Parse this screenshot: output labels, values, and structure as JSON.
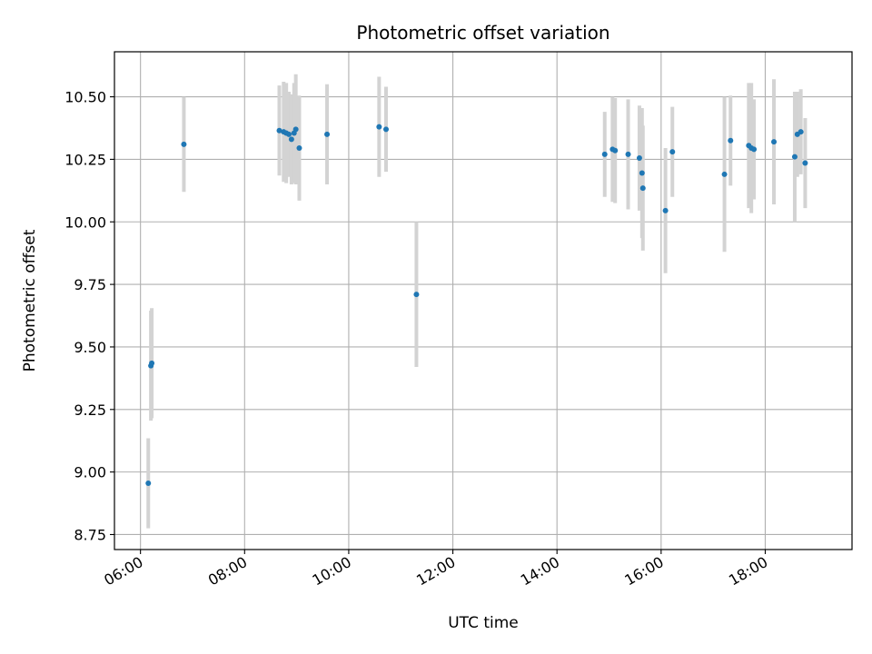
{
  "chart_data": {
    "type": "scatter",
    "title": "Photometric offset variation",
    "xlabel": "UTC time",
    "ylabel": "Photometric offset",
    "x_ticks": [
      "06:00",
      "08:00",
      "10:00",
      "12:00",
      "14:00",
      "16:00",
      "18:00"
    ],
    "y_ticks": [
      "8.75",
      "9.00",
      "9.25",
      "9.50",
      "9.75",
      "10.00",
      "10.25",
      "10.50"
    ],
    "xlim": [
      "05:30",
      "19:40"
    ],
    "ylim": [
      8.69,
      10.68
    ],
    "grid": true,
    "errorbar_color": "#d3d3d3",
    "point_color": "#1f77b4",
    "points": [
      {
        "x": "06:09",
        "y": 8.955,
        "err": 0.18
      },
      {
        "x": "06:12",
        "y": 9.425,
        "err": 0.22
      },
      {
        "x": "06:13",
        "y": 9.435,
        "err": 0.22
      },
      {
        "x": "06:50",
        "y": 10.31,
        "err": 0.19
      },
      {
        "x": "08:40",
        "y": 10.365,
        "err": 0.18
      },
      {
        "x": "08:45",
        "y": 10.36,
        "err": 0.2
      },
      {
        "x": "08:48",
        "y": 10.355,
        "err": 0.2
      },
      {
        "x": "08:51",
        "y": 10.35,
        "err": 0.17
      },
      {
        "x": "08:54",
        "y": 10.33,
        "err": 0.18
      },
      {
        "x": "08:57",
        "y": 10.355,
        "err": 0.2
      },
      {
        "x": "08:59",
        "y": 10.37,
        "err": 0.22
      },
      {
        "x": "09:03",
        "y": 10.295,
        "err": 0.21
      },
      {
        "x": "09:35",
        "y": 10.35,
        "err": 0.2
      },
      {
        "x": "10:35",
        "y": 10.38,
        "err": 0.2
      },
      {
        "x": "10:43",
        "y": 10.37,
        "err": 0.17
      },
      {
        "x": "11:18",
        "y": 9.71,
        "err": 0.29
      },
      {
        "x": "14:55",
        "y": 10.27,
        "err": 0.17
      },
      {
        "x": "15:04",
        "y": 10.29,
        "err": 0.21
      },
      {
        "x": "15:07",
        "y": 10.285,
        "err": 0.21
      },
      {
        "x": "15:22",
        "y": 10.27,
        "err": 0.22
      },
      {
        "x": "15:35",
        "y": 10.255,
        "err": 0.21
      },
      {
        "x": "15:38",
        "y": 10.195,
        "err": 0.26
      },
      {
        "x": "15:39",
        "y": 10.135,
        "err": 0.25
      },
      {
        "x": "16:05",
        "y": 10.045,
        "err": 0.25
      },
      {
        "x": "16:13",
        "y": 10.28,
        "err": 0.18
      },
      {
        "x": "17:13",
        "y": 10.19,
        "err": 0.31
      },
      {
        "x": "17:20",
        "y": 10.325,
        "err": 0.18
      },
      {
        "x": "17:41",
        "y": 10.305,
        "err": 0.25
      },
      {
        "x": "17:44",
        "y": 10.295,
        "err": 0.26
      },
      {
        "x": "17:47",
        "y": 10.29,
        "err": 0.2
      },
      {
        "x": "18:10",
        "y": 10.32,
        "err": 0.25
      },
      {
        "x": "18:34",
        "y": 10.26,
        "err": 0.26
      },
      {
        "x": "18:37",
        "y": 10.35,
        "err": 0.17
      },
      {
        "x": "18:41",
        "y": 10.36,
        "err": 0.17
      },
      {
        "x": "18:46",
        "y": 10.235,
        "err": 0.18
      }
    ]
  }
}
